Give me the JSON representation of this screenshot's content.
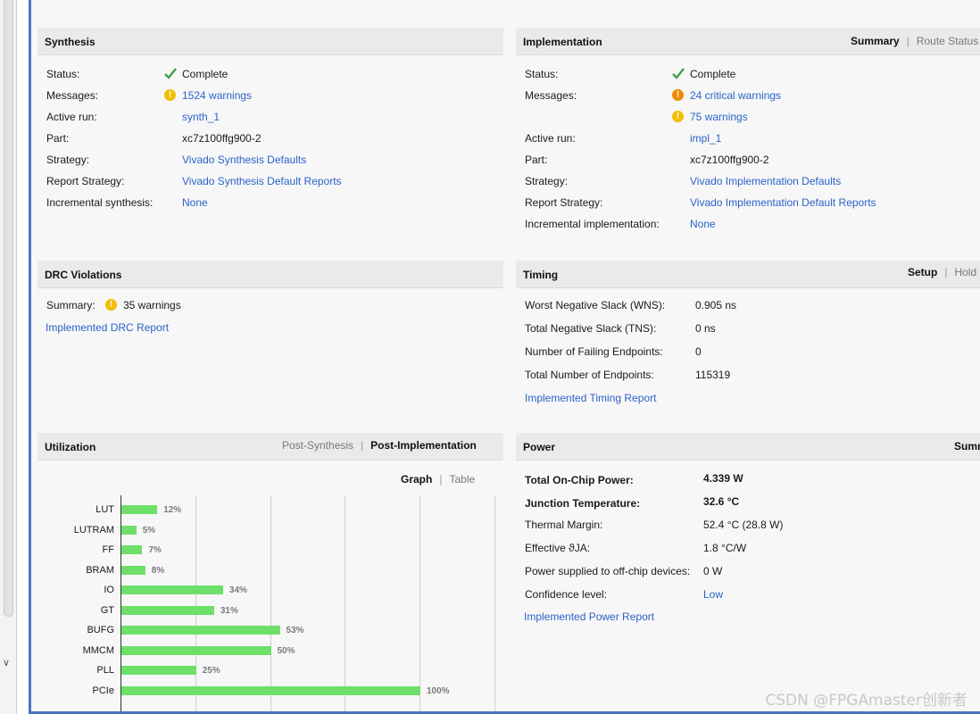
{
  "synthesis": {
    "title": "Synthesis",
    "rows": {
      "status": {
        "label": "Status:",
        "value": "Complete"
      },
      "messages": {
        "label": "Messages:",
        "value": "1524 warnings"
      },
      "active_run": {
        "label": "Active run:",
        "value": "synth_1"
      },
      "part": {
        "label": "Part:",
        "value": "xc7z100ffg900-2"
      },
      "strategy": {
        "label": "Strategy:",
        "value": "Vivado Synthesis Defaults"
      },
      "report_strategy": {
        "label": "Report Strategy:",
        "value": "Vivado Synthesis Default Reports"
      },
      "incremental": {
        "label": "Incremental synthesis:",
        "value": "None"
      }
    }
  },
  "implementation": {
    "title": "Implementation",
    "tabs": {
      "summary": "Summary",
      "route_status": "Route Status"
    },
    "rows": {
      "status": {
        "label": "Status:",
        "value": "Complete"
      },
      "messages": {
        "label": "Messages:",
        "value_critical": "24 critical warnings",
        "value_warnings": "75 warnings"
      },
      "active_run": {
        "label": "Active run:",
        "value": "impl_1"
      },
      "part": {
        "label": "Part:",
        "value": "xc7z100ffg900-2"
      },
      "strategy": {
        "label": "Strategy:",
        "value": "Vivado Implementation Defaults"
      },
      "report_strategy": {
        "label": "Report Strategy:",
        "value": "Vivado Implementation Default Reports"
      },
      "incremental": {
        "label": "Incremental implementation:",
        "value": "None"
      }
    }
  },
  "drc": {
    "title": "DRC Violations",
    "summary_label": "Summary:",
    "summary_value": "35 warnings",
    "report_link": "Implemented DRC Report"
  },
  "timing": {
    "title": "Timing",
    "tabs": {
      "setup": "Setup",
      "hold": "Hold"
    },
    "rows": {
      "wns": {
        "label": "Worst Negative Slack (WNS):",
        "value": "0.905 ns"
      },
      "tns": {
        "label": "Total Negative Slack (TNS):",
        "value": "0 ns"
      },
      "failing": {
        "label": "Number of Failing Endpoints:",
        "value": "0"
      },
      "total": {
        "label": "Total Number of Endpoints:",
        "value": "115319"
      }
    },
    "report_link": "Implemented Timing Report"
  },
  "utilization": {
    "title": "Utilization",
    "tabs": {
      "post_synthesis": "Post-Synthesis",
      "post_implementation": "Post-Implementation"
    },
    "view_tabs": {
      "graph": "Graph",
      "table": "Table"
    }
  },
  "power": {
    "title": "Power",
    "tabs": {
      "summary": "Summ"
    },
    "rows": {
      "total_power": {
        "label": "Total On-Chip Power:",
        "value": "4.339 W"
      },
      "junction_temp": {
        "label": "Junction Temperature:",
        "value": "32.6 °C"
      },
      "thermal_margin": {
        "label": "Thermal Margin:",
        "value": "52.4 °C (28.8 W)"
      },
      "theta_ja": {
        "label": "Effective ϑJA:",
        "value": "1.8 °C/W"
      },
      "off_chip": {
        "label": "Power supplied to off-chip devices:",
        "value": "0 W"
      },
      "confidence": {
        "label": "Confidence level:",
        "value": "Low"
      }
    },
    "report_link": "Implemented Power Report"
  },
  "chart_data": {
    "type": "bar",
    "orientation": "horizontal",
    "categories": [
      "LUT",
      "LUTRAM",
      "FF",
      "BRAM",
      "IO",
      "GT",
      "BUFG",
      "MMCM",
      "PLL",
      "PCIe"
    ],
    "values": [
      12,
      5,
      7,
      8,
      34,
      31,
      53,
      50,
      25,
      100
    ],
    "value_labels": [
      "12%",
      "5%",
      "7%",
      "8%",
      "34%",
      "31%",
      "53%",
      "50%",
      "25%",
      "100%"
    ],
    "xlim": [
      0,
      100
    ],
    "grid": true,
    "bar_color": "#6ee06a"
  },
  "watermark": "CSDN @FPGAmaster创新者",
  "colors": {
    "link": "#2a62c9",
    "warning": "#f2bd00",
    "critical": "#f08a00",
    "check": "#3aa04a",
    "frame": "#4a76c4"
  }
}
